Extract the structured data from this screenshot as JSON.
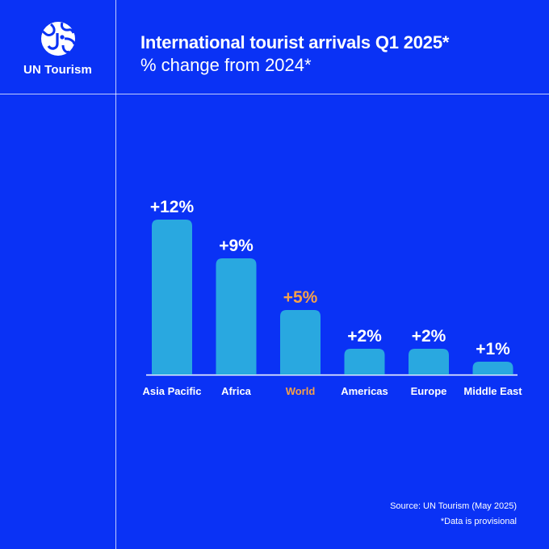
{
  "brand": {
    "name": "UN Tourism",
    "logo_icon": "un-tourism-logo-icon"
  },
  "header": {
    "title": "International tourist arrivals Q1 2025*",
    "subtitle": "% change from 2024*"
  },
  "chart_data": {
    "type": "bar",
    "title": "International tourist arrivals Q1 2025*",
    "subtitle": "% change from 2024*",
    "categories": [
      "Asia Pacific",
      "Africa",
      "World",
      "Americas",
      "Europe",
      "Middle East"
    ],
    "values": [
      12,
      9,
      5,
      2,
      2,
      1
    ],
    "value_labels": [
      "+12%",
      "+9%",
      "+5%",
      "+2%",
      "+2%",
      "+1%"
    ],
    "highlight_category": "World",
    "xlabel": "",
    "ylabel": "",
    "ylim": [
      0,
      12
    ],
    "grid": false,
    "legend": "none",
    "colors": {
      "bar": "#29a8e0",
      "highlight_text": "#f5a04a",
      "text": "#ffffff",
      "background": "#0a32f5"
    }
  },
  "footer": {
    "source": "Source: UN Tourism (May 2025)",
    "note": "*Data is provisional"
  }
}
